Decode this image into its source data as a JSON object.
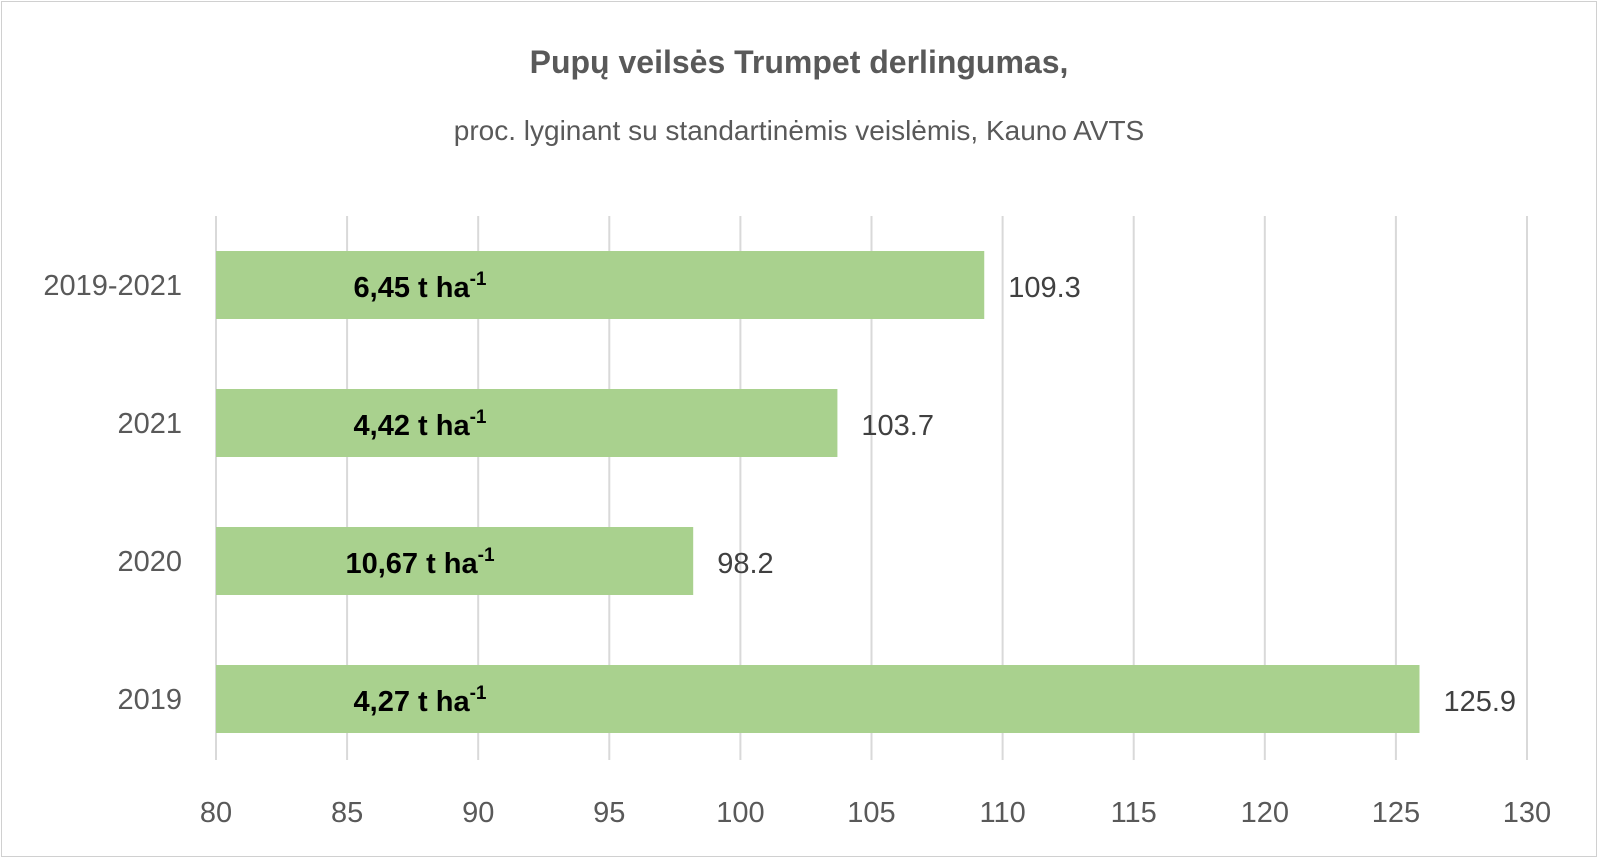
{
  "chart_data": {
    "type": "bar",
    "orientation": "horizontal",
    "title": "Pupų veilsės Trumpet derlingumas,",
    "subtitle": "proc. lyginant su standartinėmis veislėmis,  Kauno AVTS",
    "categories": [
      "2019-2021",
      "2021",
      "2020",
      "2019"
    ],
    "values": [
      109.3,
      103.7,
      98.2,
      125.9
    ],
    "value_labels": [
      "109.3",
      "103.7",
      "98.2",
      "125.9"
    ],
    "bar_annotations": [
      {
        "main": "6,45 t ha",
        "sup": "-1"
      },
      {
        "main": "4,42 t ha",
        "sup": "-1"
      },
      {
        "main": "10,67 t ha",
        "sup": "-1"
      },
      {
        "main": "4,27 t ha",
        "sup": "-1"
      }
    ],
    "xlim": [
      80,
      130
    ],
    "xticks": [
      80,
      85,
      90,
      95,
      100,
      105,
      110,
      115,
      120,
      125,
      130
    ],
    "grid": true,
    "legend": "none",
    "bar_color": "#a9d18e",
    "grid_color": "#d9d9d9"
  }
}
